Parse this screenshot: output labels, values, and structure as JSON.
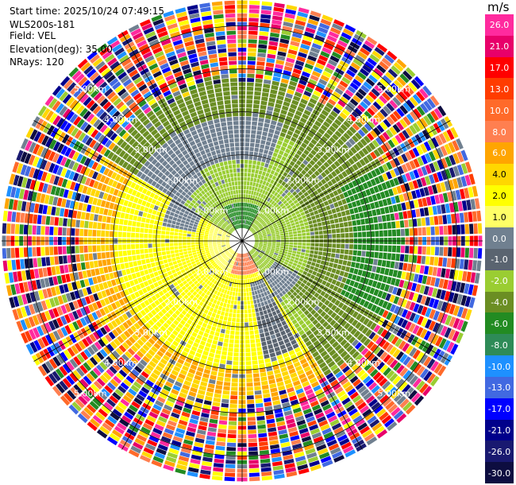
{
  "header": {
    "start_time": "Start time: 2025/10/24 07:49:15",
    "instrument": "WLS200s-181",
    "field": "Field: VEL",
    "elevation": "Elevation(deg): 35.00",
    "nrays": "NRays: 120"
  },
  "colorbar": {
    "unit": "m/s",
    "levels": [
      {
        "label": "26.0",
        "color": "#ff2a9e"
      },
      {
        "label": "21.0",
        "color": "#e8006a"
      },
      {
        "label": "17.0",
        "color": "#ff0000"
      },
      {
        "label": "13.0",
        "color": "#ff3c00"
      },
      {
        "label": "10.0",
        "color": "#ff6a2a"
      },
      {
        "label": "8.0",
        "color": "#ff7f50"
      },
      {
        "label": "6.0",
        "color": "#ffa500"
      },
      {
        "label": "4.0",
        "color": "#ffd700"
      },
      {
        "label": "2.0",
        "color": "#ffff00"
      },
      {
        "label": "1.0",
        "color": "#ffff66"
      },
      {
        "label": "0.0",
        "color": "#708090"
      },
      {
        "label": "-1.0",
        "color": "#5a6470"
      },
      {
        "label": "-2.0",
        "color": "#9acd32"
      },
      {
        "label": "-4.0",
        "color": "#6b8e23"
      },
      {
        "label": "-6.0",
        "color": "#228b22"
      },
      {
        "label": "-8.0",
        "color": "#2e8b57"
      },
      {
        "label": "-10.0",
        "color": "#1e90ff"
      },
      {
        "label": "-13.0",
        "color": "#4169e1"
      },
      {
        "label": "-17.0",
        "color": "#0000ff"
      },
      {
        "label": "-21.0",
        "color": "#00008b"
      },
      {
        "label": "-26.0",
        "color": "#191970"
      },
      {
        "label": "-30.0",
        "color": "#0d0d40"
      }
    ]
  },
  "chart_data": {
    "type": "heatmap",
    "projection": "polar PPI",
    "field": "VEL",
    "units": "m/s",
    "nrays": 120,
    "range_rings_km": [
      1,
      2,
      3,
      4,
      5
    ],
    "ring_labels": [
      "1.00km",
      "2.00km",
      "3.00km",
      "4.00km",
      "5.00km"
    ],
    "max_range_km": 5.6,
    "spokes": 12,
    "colorbar_range": [
      -30,
      26
    ],
    "description_regions": [
      {
        "name": "south-west",
        "azimuth_deg": [
          150,
          300
        ],
        "range_km": [
          0.4,
          3.6
        ],
        "value": 2.0
      },
      {
        "name": "north-east",
        "azimuth_deg": [
          300,
          150
        ],
        "range_km": [
          0.4,
          3.6
        ],
        "value": -3.0
      },
      {
        "name": "ring-gray",
        "range_km": [
          2.0,
          2.6
        ],
        "value": 0.0
      },
      {
        "name": "noise",
        "range_km": [
          3.6,
          5.6
        ],
        "value": "random"
      }
    ]
  }
}
